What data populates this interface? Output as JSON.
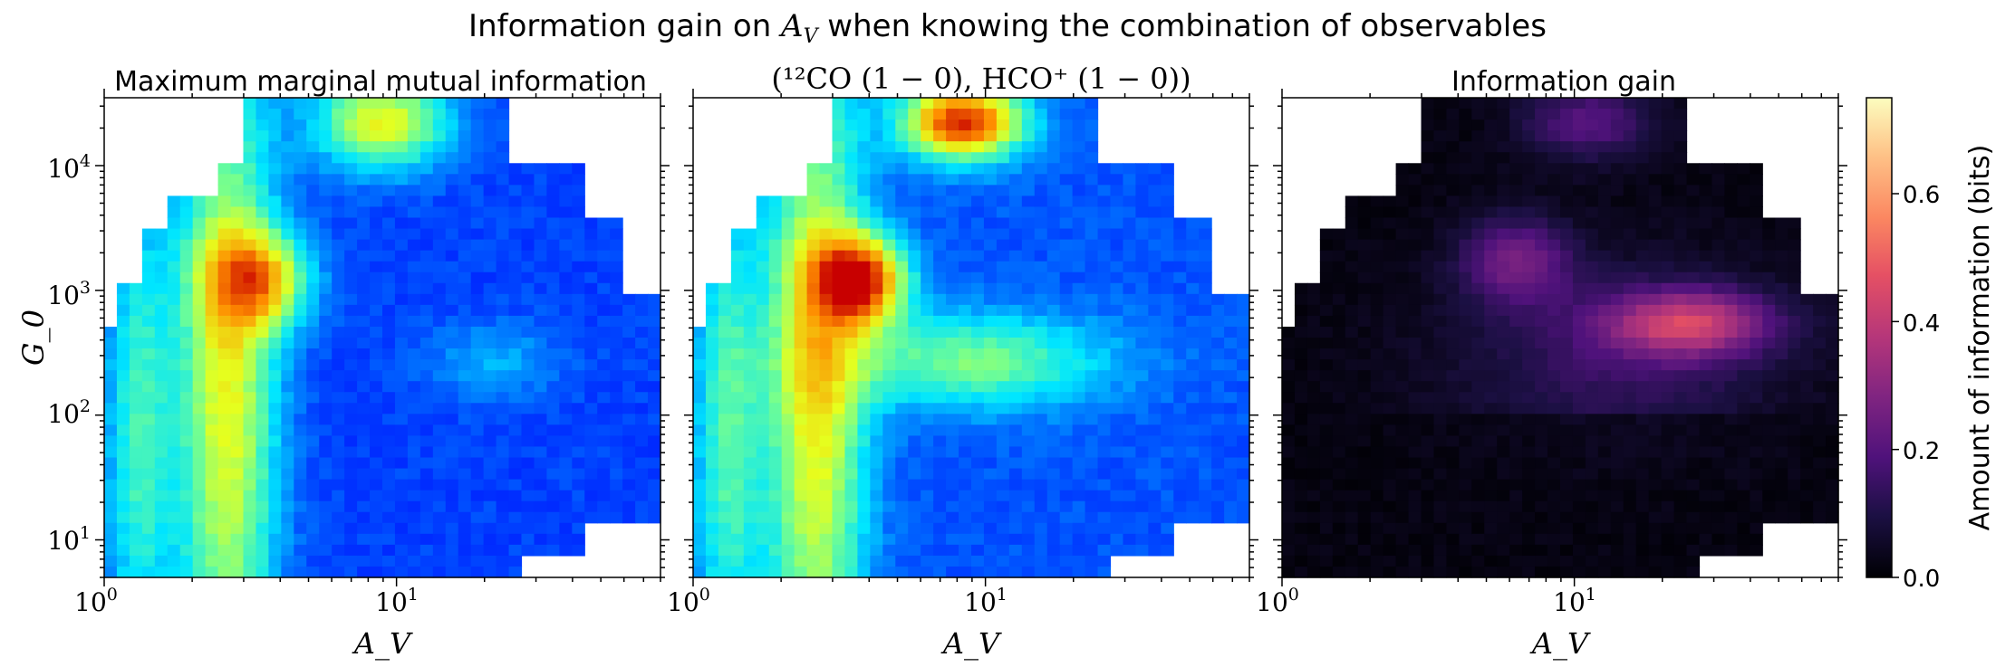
{
  "figure": {
    "title_prefix": "Information gain on ",
    "title_var": "A",
    "title_var_sub": "V",
    "title_suffix": " when knowing the combination of observables",
    "colorbar_label": "Amount of information (bits)",
    "colorbar_ticks": [
      "0.0",
      "0.2",
      "0.4",
      "0.6"
    ]
  },
  "chart_data": [
    {
      "type": "heatmap",
      "title": "Maximum marginal mutual information",
      "xlabel": "A_V",
      "ylabel": "G_0",
      "xscale": "log",
      "yscale": "log",
      "xlim": [
        1,
        80
      ],
      "ylim": [
        5,
        35000
      ],
      "xticks": [
        {
          "base": "10",
          "exp": "0"
        },
        {
          "base": "10",
          "exp": "1"
        }
      ],
      "yticks": [
        {
          "base": "10",
          "exp": "1"
        },
        {
          "base": "10",
          "exp": "2"
        },
        {
          "base": "10",
          "exp": "3"
        },
        {
          "base": "10",
          "exp": "4"
        }
      ],
      "colormap": "jet",
      "cmin": 0.0,
      "cmax": 1.0,
      "grid": false
    },
    {
      "type": "heatmap",
      "title_line": "(¹²CO (1 − 0), HCO⁺ (1 − 0))",
      "xlabel": "A_V",
      "xscale": "log",
      "yscale": "log",
      "xlim": [
        1,
        80
      ],
      "ylim": [
        5,
        35000
      ],
      "xticks": [
        {
          "base": "10",
          "exp": "0"
        },
        {
          "base": "10",
          "exp": "1"
        }
      ],
      "colormap": "jet",
      "cmin": 0.0,
      "cmax": 1.0,
      "grid": false
    },
    {
      "type": "heatmap",
      "title": "Information gain",
      "xlabel": "A_V",
      "xscale": "log",
      "yscale": "log",
      "xlim": [
        1,
        80
      ],
      "ylim": [
        5,
        35000
      ],
      "xticks": [
        {
          "base": "10",
          "exp": "0"
        },
        {
          "base": "10",
          "exp": "1"
        }
      ],
      "colormap": "magma",
      "cmin": 0.0,
      "cmax": 0.75,
      "colorbar_ticks": [
        0.0,
        0.2,
        0.4,
        0.6
      ],
      "grid": false
    }
  ]
}
